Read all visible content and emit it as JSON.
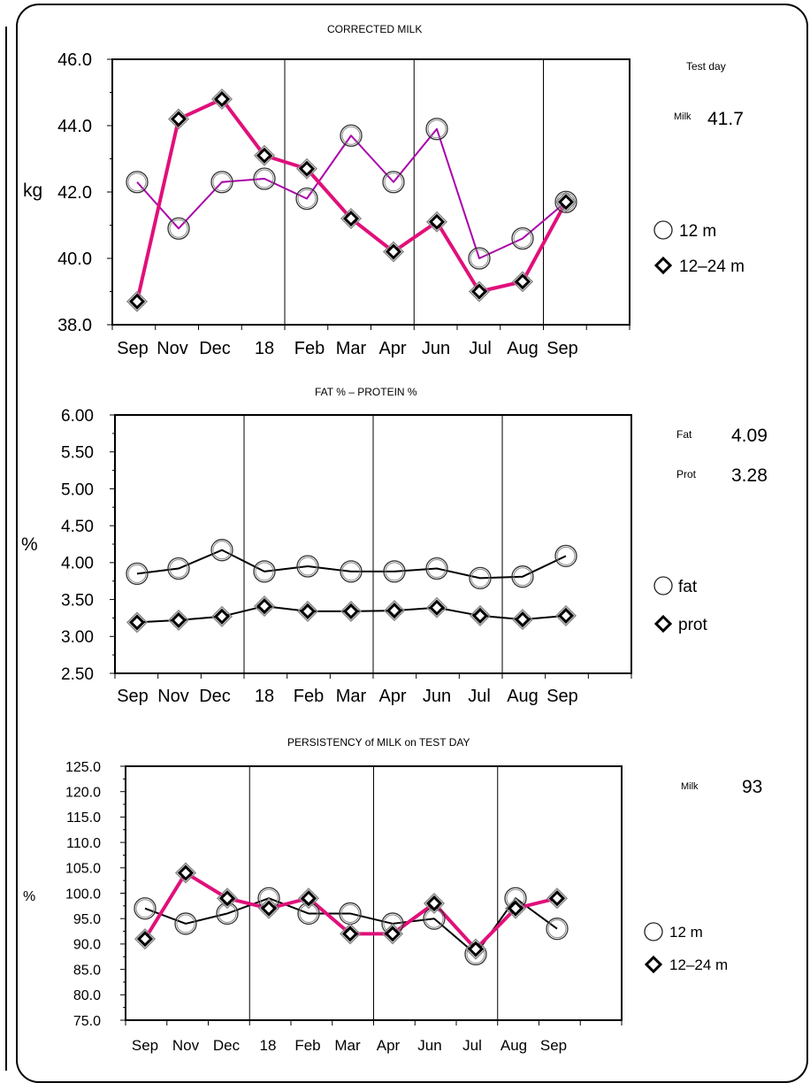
{
  "chart_data": [
    {
      "type": "line",
      "title": "CORRECTED MILK",
      "ylabel": "kg",
      "categories": [
        "Sep",
        "Nov",
        "Dec",
        "18",
        "Feb",
        "Mar",
        "Apr",
        "Jun",
        "Jul",
        "Aug",
        "Sep"
      ],
      "ylim": [
        38.0,
        46.0
      ],
      "yticks": [
        "46.0",
        "44.0",
        "42.0",
        "40.0",
        "38.0"
      ],
      "series": [
        {
          "name": "12 m",
          "marker": "circle",
          "color": "#aa00aa",
          "values": [
            42.3,
            40.9,
            42.3,
            42.4,
            41.8,
            43.7,
            42.3,
            43.9,
            40.0,
            40.6,
            41.7
          ]
        },
        {
          "name": "12–24 m",
          "marker": "diamond",
          "color": "#e0107a",
          "values": [
            38.7,
            44.2,
            44.8,
            43.1,
            42.7,
            41.2,
            40.2,
            41.1,
            39.0,
            39.3,
            41.7
          ]
        }
      ],
      "side": {
        "heading": "Test day",
        "rows": [
          {
            "label": "Milk",
            "value": "41.7"
          }
        ]
      }
    },
    {
      "type": "line",
      "title": "FAT % – PROTEIN %",
      "ylabel": "%",
      "categories": [
        "Sep",
        "Nov",
        "Dec",
        "18",
        "Feb",
        "Mar",
        "Apr",
        "Jun",
        "Jul",
        "Aug",
        "Sep"
      ],
      "ylim": [
        2.5,
        6.0
      ],
      "yticks": [
        "6.00",
        "5.50",
        "5.00",
        "4.50",
        "4.00",
        "3.50",
        "3.00",
        "2.50"
      ],
      "series": [
        {
          "name": "fat",
          "marker": "circle",
          "color": "#000000",
          "values": [
            3.85,
            3.92,
            4.17,
            3.88,
            3.95,
            3.88,
            3.88,
            3.92,
            3.79,
            3.81,
            4.09
          ]
        },
        {
          "name": "prot",
          "marker": "diamond",
          "color": "#000000",
          "values": [
            3.19,
            3.22,
            3.27,
            3.41,
            3.34,
            3.34,
            3.35,
            3.39,
            3.28,
            3.23,
            3.28
          ]
        }
      ],
      "side": {
        "heading": "",
        "rows": [
          {
            "label": "Fat",
            "value": "4.09"
          },
          {
            "label": "Prot",
            "value": "3.28"
          }
        ]
      }
    },
    {
      "type": "line",
      "title": "PERSISTENCY of MILK on TEST DAY",
      "ylabel": "%",
      "categories": [
        "Sep",
        "Nov",
        "Dec",
        "18",
        "Feb",
        "Mar",
        "Apr",
        "Jun",
        "Jul",
        "Aug",
        "Sep"
      ],
      "ylim": [
        75.0,
        125.0
      ],
      "yticks": [
        "125.0",
        "120.0",
        "115.0",
        "110.0",
        "105.0",
        "100.0",
        "95.0",
        "90.0",
        "85.0",
        "80.0",
        "75.0"
      ],
      "series": [
        {
          "name": "12 m",
          "marker": "circle",
          "color": "#000000",
          "values": [
            97,
            94,
            96,
            99,
            96,
            96,
            94,
            95,
            88,
            99,
            93
          ]
        },
        {
          "name": "12–24 m",
          "marker": "diamond",
          "color": "#e0107a",
          "values": [
            91,
            104,
            99,
            97,
            99,
            92,
            92,
            98,
            89,
            97,
            99
          ]
        }
      ],
      "side": {
        "heading": "",
        "rows": [
          {
            "label": "Milk",
            "value": "93"
          }
        ]
      }
    }
  ]
}
